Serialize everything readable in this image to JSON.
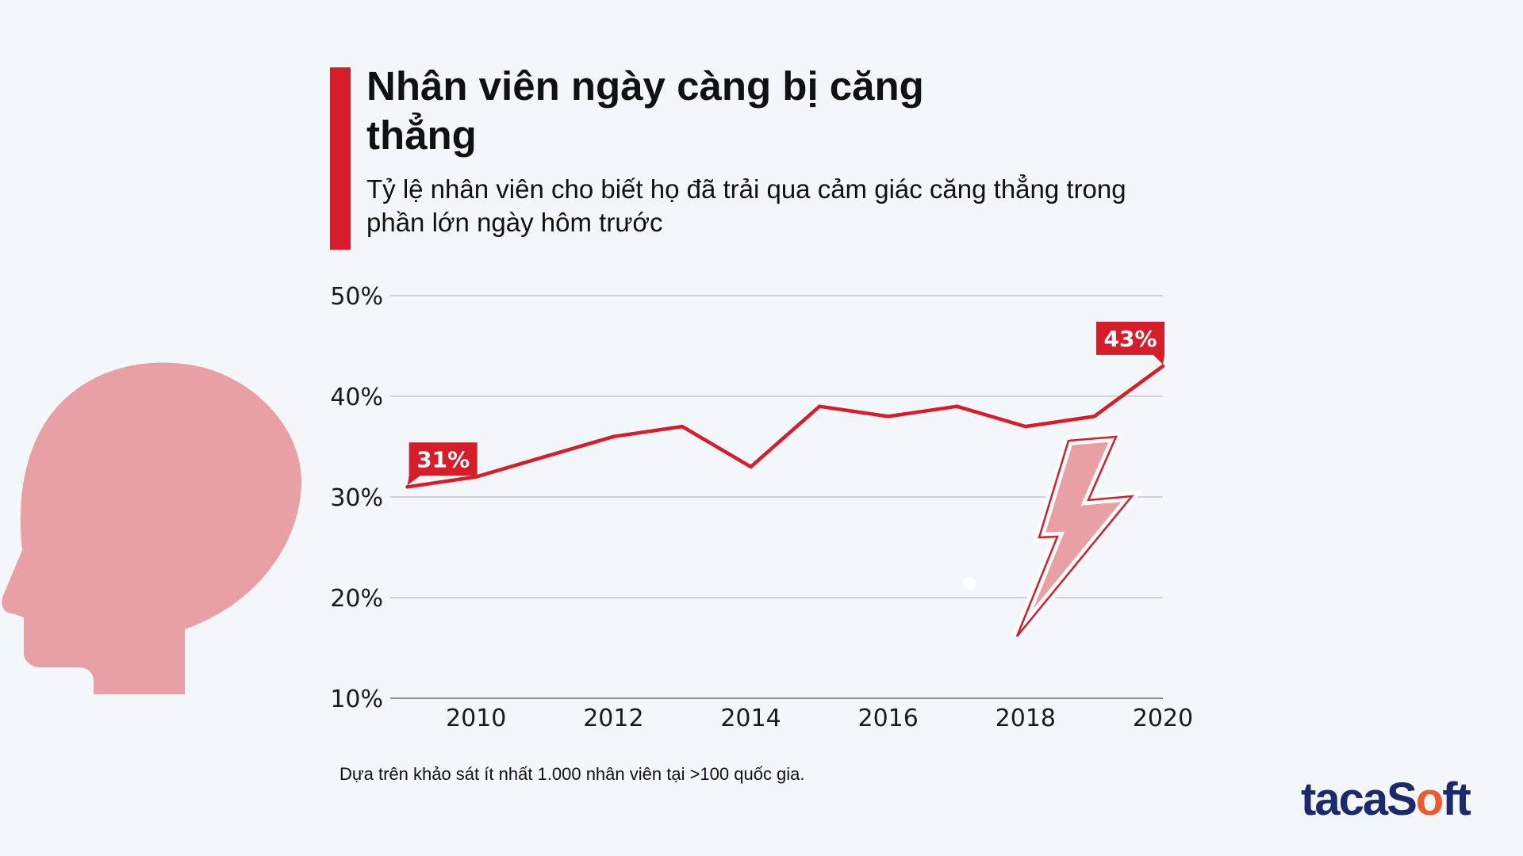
{
  "header": {
    "title": "Nhân viên ngày càng bị căng thẳng",
    "subtitle": "Tỷ lệ nhân viên cho biết họ đã trải qua cảm giác căng thẳng trong phần lớn ngày hôm trước"
  },
  "footnote": "Dựa trên khảo sát ít nhất 1.000 nhân viên tại >100 quốc gia.",
  "logo": {
    "part1": "taca",
    "part2": "S",
    "part3": "o",
    "part4": "ft"
  },
  "colors": {
    "accent": "#d71c2a",
    "illustration": "#e9a0a5",
    "grid": "#c4c7cc",
    "logo_blue": "#1a2a6c",
    "logo_orange": "#ee5a2a"
  },
  "chart_data": {
    "type": "line",
    "x": [
      2009,
      2010,
      2011,
      2012,
      2013,
      2014,
      2015,
      2016,
      2017,
      2018,
      2019,
      2020
    ],
    "series": [
      {
        "values": [
          31,
          32,
          34,
          36,
          37,
          33,
          39,
          38,
          39,
          37,
          38,
          43
        ]
      }
    ],
    "ylim": [
      10,
      50
    ],
    "yticks": [
      10,
      20,
      30,
      40,
      50
    ],
    "ytick_labels": [
      "10%",
      "20%",
      "30%",
      "40%",
      "50%"
    ],
    "xticks": [
      2010,
      2012,
      2014,
      2016,
      2018,
      2020
    ],
    "xtick_labels": [
      "2010",
      "2012",
      "2014",
      "2016",
      "2018",
      "2020"
    ],
    "annotations": [
      {
        "x": 2009,
        "y": 31,
        "label": "31%"
      },
      {
        "x": 2020,
        "y": 43,
        "label": "43%"
      }
    ],
    "grid": true,
    "illustration": "stressed-head-with-lightning-bolt"
  }
}
